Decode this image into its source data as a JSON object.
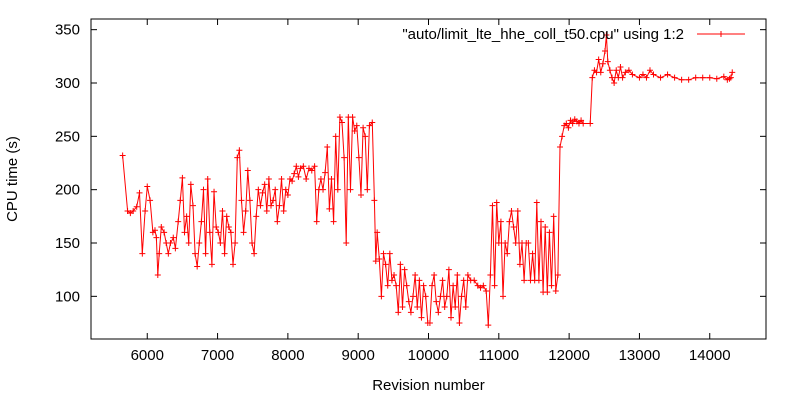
{
  "chart_data": {
    "type": "line",
    "title": "",
    "xlabel": "Revision number",
    "ylabel": "CPU time (s)",
    "xlim": [
      5200,
      14800
    ],
    "ylim": [
      60,
      360
    ],
    "x_ticks": [
      6000,
      7000,
      8000,
      9000,
      10000,
      11000,
      12000,
      13000,
      14000
    ],
    "y_ticks": [
      100,
      150,
      200,
      250,
      300,
      350
    ],
    "legend_position": "top-right",
    "colors": {
      "series": "#ff0000",
      "axes": "#000000",
      "background": "#ffffff"
    },
    "series": [
      {
        "name": "\"auto/limit_lte_hhe_coll_t50.cpu\" using 1:2",
        "points": [
          [
            5650,
            232
          ],
          [
            5720,
            180
          ],
          [
            5760,
            178
          ],
          [
            5800,
            180
          ],
          [
            5850,
            184
          ],
          [
            5890,
            197
          ],
          [
            5930,
            140
          ],
          [
            5970,
            180
          ],
          [
            6000,
            203
          ],
          [
            6040,
            190
          ],
          [
            6080,
            160
          ],
          [
            6110,
            162
          ],
          [
            6130,
            155
          ],
          [
            6150,
            120
          ],
          [
            6170,
            140
          ],
          [
            6200,
            165
          ],
          [
            6240,
            160
          ],
          [
            6270,
            150
          ],
          [
            6300,
            140
          ],
          [
            6330,
            150
          ],
          [
            6370,
            155
          ],
          [
            6400,
            145
          ],
          [
            6440,
            170
          ],
          [
            6470,
            190
          ],
          [
            6500,
            211
          ],
          [
            6530,
            160
          ],
          [
            6560,
            175
          ],
          [
            6590,
            150
          ],
          [
            6620,
            205
          ],
          [
            6650,
            185
          ],
          [
            6680,
            140
          ],
          [
            6710,
            128
          ],
          [
            6740,
            150
          ],
          [
            6770,
            170
          ],
          [
            6800,
            200
          ],
          [
            6830,
            140
          ],
          [
            6860,
            210
          ],
          [
            6890,
            160
          ],
          [
            6920,
            130
          ],
          [
            6950,
            198
          ],
          [
            6980,
            165
          ],
          [
            7010,
            160
          ],
          [
            7040,
            150
          ],
          [
            7070,
            180
          ],
          [
            7100,
            140
          ],
          [
            7130,
            175
          ],
          [
            7160,
            165
          ],
          [
            7190,
            160
          ],
          [
            7220,
            130
          ],
          [
            7250,
            150
          ],
          [
            7280,
            230
          ],
          [
            7310,
            237
          ],
          [
            7340,
            190
          ],
          [
            7370,
            160
          ],
          [
            7400,
            180
          ],
          [
            7430,
            218
          ],
          [
            7460,
            190
          ],
          [
            7490,
            150
          ],
          [
            7520,
            140
          ],
          [
            7550,
            175
          ],
          [
            7580,
            200
          ],
          [
            7610,
            185
          ],
          [
            7640,
            197
          ],
          [
            7670,
            205
          ],
          [
            7700,
            180
          ],
          [
            7730,
            210
          ],
          [
            7760,
            185
          ],
          [
            7790,
            190
          ],
          [
            7820,
            200
          ],
          [
            7850,
            170
          ],
          [
            7880,
            185
          ],
          [
            7910,
            210
          ],
          [
            7940,
            180
          ],
          [
            7970,
            200
          ],
          [
            8000,
            195
          ],
          [
            8030,
            210
          ],
          [
            8060,
            208
          ],
          [
            8090,
            215
          ],
          [
            8120,
            222
          ],
          [
            8150,
            212
          ],
          [
            8180,
            220
          ],
          [
            8220,
            222
          ],
          [
            8260,
            210
          ],
          [
            8300,
            220
          ],
          [
            8340,
            218
          ],
          [
            8380,
            222
          ],
          [
            8410,
            170
          ],
          [
            8440,
            200
          ],
          [
            8470,
            210
          ],
          [
            8500,
            200
          ],
          [
            8530,
            216
          ],
          [
            8560,
            240
          ],
          [
            8590,
            182
          ],
          [
            8620,
            210
          ],
          [
            8650,
            170
          ],
          [
            8680,
            250
          ],
          [
            8710,
            200
          ],
          [
            8740,
            268
          ],
          [
            8770,
            263
          ],
          [
            8800,
            230
          ],
          [
            8830,
            150
          ],
          [
            8860,
            268
          ],
          [
            8890,
            200
          ],
          [
            8920,
            268
          ],
          [
            8950,
            255
          ],
          [
            8980,
            260
          ],
          [
            9010,
            230
          ],
          [
            9040,
            195
          ],
          [
            9070,
            258
          ],
          [
            9100,
            250
          ],
          [
            9130,
            200
          ],
          [
            9160,
            260
          ],
          [
            9200,
            263
          ],
          [
            9230,
            190
          ],
          [
            9250,
            133
          ],
          [
            9270,
            160
          ],
          [
            9300,
            135
          ],
          [
            9330,
            100
          ],
          [
            9360,
            140
          ],
          [
            9390,
            130
          ],
          [
            9420,
            110
          ],
          [
            9450,
            140
          ],
          [
            9480,
            115
          ],
          [
            9510,
            120
          ],
          [
            9540,
            110
          ],
          [
            9570,
            85
          ],
          [
            9600,
            130
          ],
          [
            9630,
            90
          ],
          [
            9660,
            125
          ],
          [
            9690,
            110
          ],
          [
            9720,
            95
          ],
          [
            9750,
            85
          ],
          [
            9780,
            100
          ],
          [
            9810,
            120
          ],
          [
            9840,
            90
          ],
          [
            9870,
            115
          ],
          [
            9900,
            80
          ],
          [
            9930,
            110
          ],
          [
            9960,
            100
          ],
          [
            9990,
            75
          ],
          [
            10020,
            75
          ],
          [
            10050,
            110
          ],
          [
            10080,
            120
          ],
          [
            10110,
            95
          ],
          [
            10140,
            85
          ],
          [
            10170,
            100
          ],
          [
            10200,
            115
          ],
          [
            10230,
            90
          ],
          [
            10260,
            100
          ],
          [
            10290,
            125
          ],
          [
            10320,
            80
          ],
          [
            10350,
            110
          ],
          [
            10380,
            90
          ],
          [
            10410,
            120
          ],
          [
            10440,
            75
          ],
          [
            10470,
            100
          ],
          [
            10500,
            115
          ],
          [
            10530,
            90
          ],
          [
            10560,
            120
          ],
          [
            10600,
            115
          ],
          [
            10650,
            115
          ],
          [
            10700,
            110
          ],
          [
            10740,
            108
          ],
          [
            10780,
            110
          ],
          [
            10820,
            105
          ],
          [
            10850,
            73
          ],
          [
            10880,
            120
          ],
          [
            10910,
            185
          ],
          [
            10940,
            110
          ],
          [
            10970,
            188
          ],
          [
            11000,
            150
          ],
          [
            11030,
            170
          ],
          [
            11060,
            100
          ],
          [
            11090,
            150
          ],
          [
            11120,
            140
          ],
          [
            11150,
            170
          ],
          [
            11180,
            180
          ],
          [
            11210,
            165
          ],
          [
            11240,
            150
          ],
          [
            11270,
            180
          ],
          [
            11300,
            130
          ],
          [
            11330,
            150
          ],
          [
            11360,
            115
          ],
          [
            11390,
            150
          ],
          [
            11420,
            150
          ],
          [
            11450,
            115
          ],
          [
            11480,
            140
          ],
          [
            11510,
            115
          ],
          [
            11540,
            188
          ],
          [
            11570,
            115
          ],
          [
            11600,
            170
          ],
          [
            11630,
            104
          ],
          [
            11660,
            165
          ],
          [
            11690,
            104
          ],
          [
            11720,
            160
          ],
          [
            11750,
            110
          ],
          [
            11780,
            175
          ],
          [
            11810,
            105
          ],
          [
            11840,
            120
          ],
          [
            11870,
            240
          ],
          [
            11900,
            250
          ],
          [
            11930,
            260
          ],
          [
            11960,
            262
          ],
          [
            11990,
            258
          ],
          [
            12020,
            265
          ],
          [
            12050,
            262
          ],
          [
            12080,
            266
          ],
          [
            12110,
            264
          ],
          [
            12140,
            262
          ],
          [
            12170,
            265
          ],
          [
            12200,
            262
          ],
          [
            12300,
            262
          ],
          [
            12330,
            305
          ],
          [
            12360,
            312
          ],
          [
            12390,
            310
          ],
          [
            12420,
            322
          ],
          [
            12450,
            310
          ],
          [
            12480,
            318
          ],
          [
            12510,
            330
          ],
          [
            12530,
            345
          ],
          [
            12550,
            320
          ],
          [
            12580,
            312
          ],
          [
            12610,
            305
          ],
          [
            12640,
            300
          ],
          [
            12670,
            312
          ],
          [
            12700,
            305
          ],
          [
            12730,
            315
          ],
          [
            12760,
            305
          ],
          [
            12800,
            310
          ],
          [
            12850,
            312
          ],
          [
            12900,
            308
          ],
          [
            13000,
            305
          ],
          [
            13050,
            308
          ],
          [
            13100,
            305
          ],
          [
            13150,
            312
          ],
          [
            13200,
            308
          ],
          [
            13300,
            305
          ],
          [
            13400,
            308
          ],
          [
            13500,
            305
          ],
          [
            13600,
            303
          ],
          [
            13700,
            303
          ],
          [
            13800,
            305
          ],
          [
            13900,
            305
          ],
          [
            14000,
            305
          ],
          [
            14100,
            304
          ],
          [
            14200,
            306
          ],
          [
            14250,
            303
          ],
          [
            14280,
            304
          ],
          [
            14300,
            305
          ],
          [
            14320,
            310
          ]
        ]
      }
    ]
  }
}
